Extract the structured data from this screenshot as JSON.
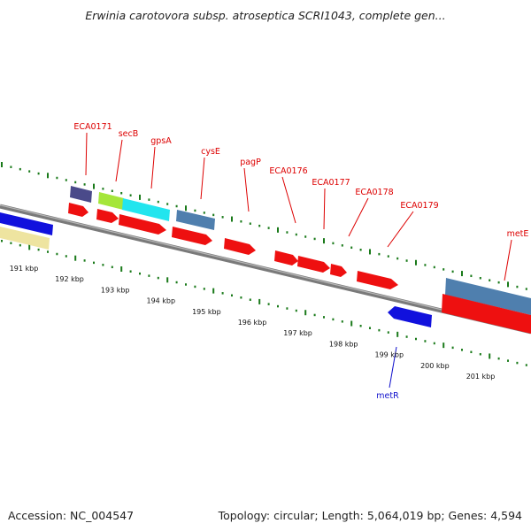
{
  "title": "Erwinia carotovora subsp. atroseptica SCRI1043, complete gen...",
  "accession": "Accession: NC_004547",
  "summary": "Topology: circular; Length: 5,064,019 bp; Genes: 4,594",
  "colors": {
    "forward_cds": "#ee0000",
    "reverse_cds": "#1111dd",
    "backbone": "#777777",
    "tick": "#1a7a1a",
    "label_red": "#dd0000",
    "label_blue": "#1010cc",
    "steelblue": "#4f7fae",
    "cyan": "#22e5ee",
    "lime": "#a5e63a",
    "navy": "#4a4a8a",
    "khaki": "#eee4a0"
  },
  "scale_labels": [
    "191 kbp",
    "192 kbp",
    "193 kbp",
    "194 kbp",
    "195 kbp",
    "196 kbp",
    "197 kbp",
    "198 kbp",
    "199 kbp",
    "200 kbp",
    "201 kbp"
  ],
  "gene_labels": [
    {
      "name": "ECA0171",
      "color": "red"
    },
    {
      "name": "secB",
      "color": "red"
    },
    {
      "name": "gpsA",
      "color": "red"
    },
    {
      "name": "cysE",
      "color": "red"
    },
    {
      "name": "pagP",
      "color": "red"
    },
    {
      "name": "ECA0176",
      "color": "red"
    },
    {
      "name": "ECA0177",
      "color": "red"
    },
    {
      "name": "ECA0178",
      "color": "red"
    },
    {
      "name": "ECA0179",
      "color": "red"
    },
    {
      "name": "metE",
      "color": "red"
    },
    {
      "name": "metR",
      "color": "blue"
    }
  ]
}
